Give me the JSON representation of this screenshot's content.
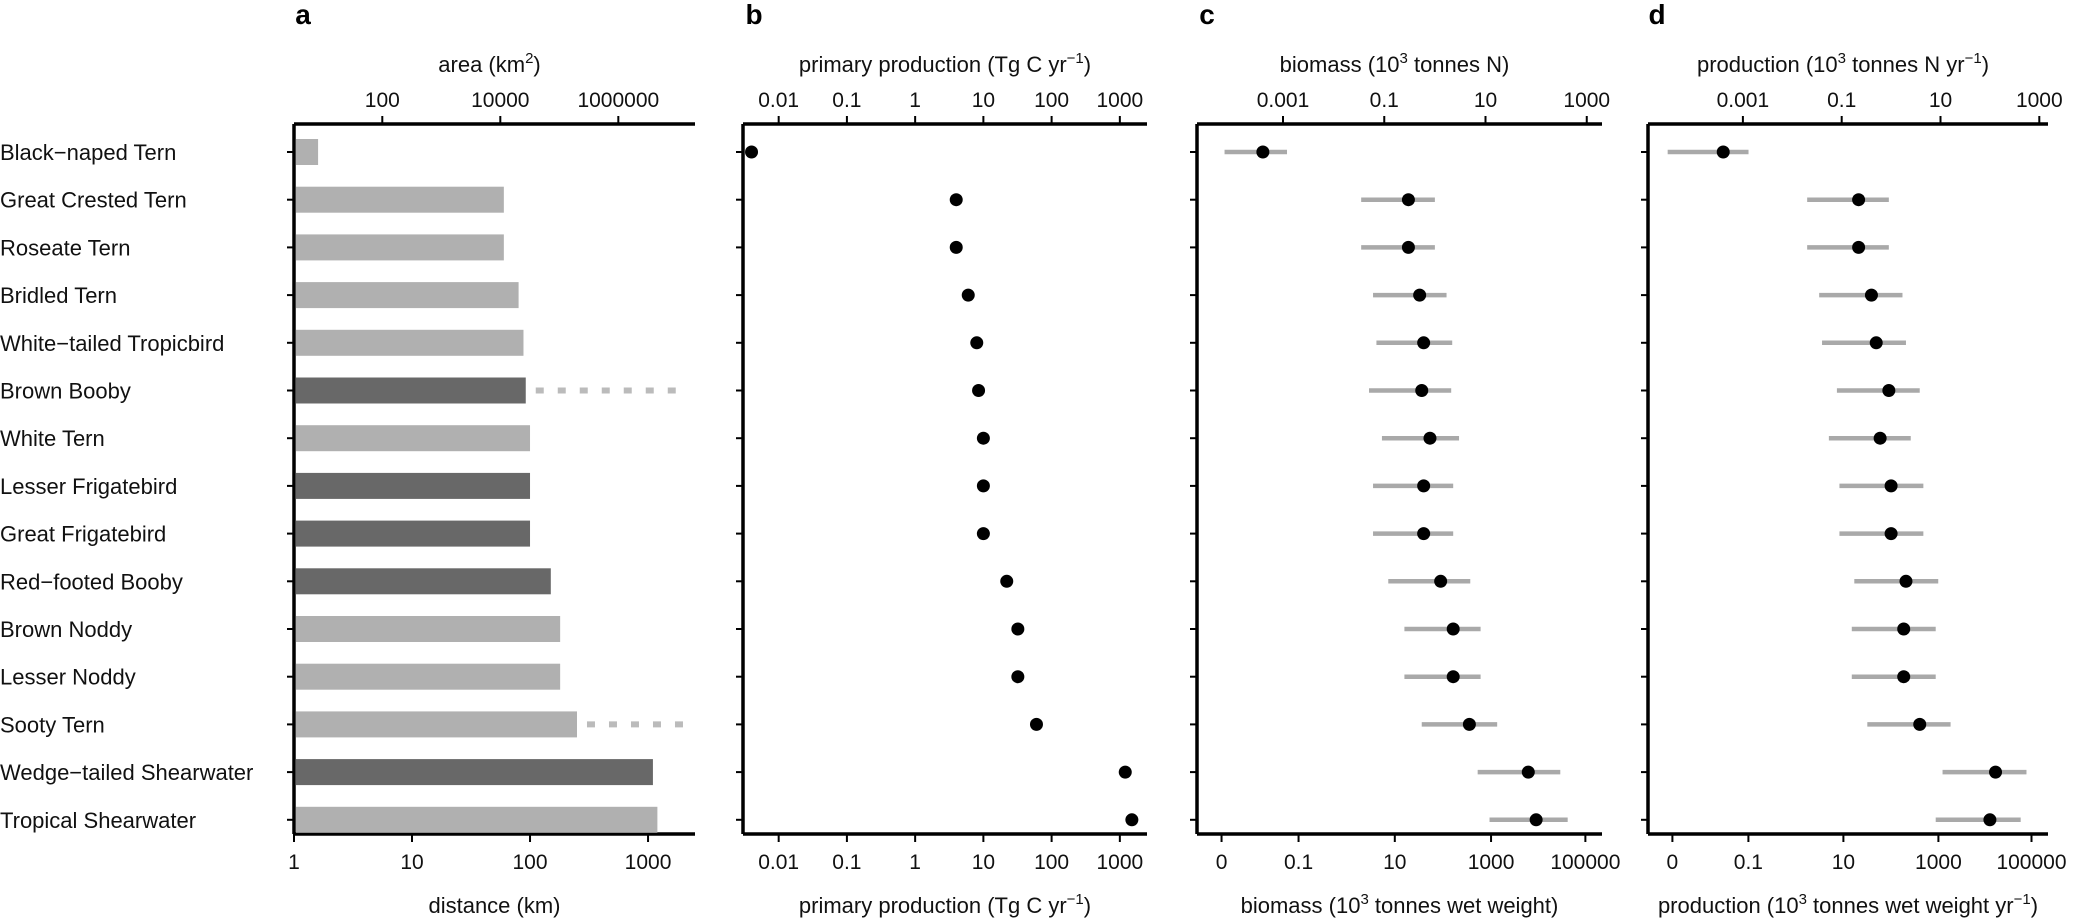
{
  "colors": {
    "bar_light": "#b0b0b0",
    "bar_dark": "#686868",
    "errorbar": "#a9a9a9",
    "point": "#000000"
  },
  "chart_data": [
    {
      "panel": "a",
      "type": "bar",
      "orientation": "horizontal",
      "categories": [
        "Black−naped Tern",
        "Great Crested Tern",
        "Roseate Tern",
        "Bridled Tern",
        "White−tailed Tropicbird",
        "Brown Booby",
        "White Tern",
        "Lesser Frigatebird",
        "Great Frigatebird",
        "Red−footed Booby",
        "Brown Noddy",
        "Lesser Noddy",
        "Sooty Tern",
        "Wedge−tailed Shearwater",
        "Tropical Shearwater"
      ],
      "values": [
        1.6,
        60,
        60,
        80,
        88,
        92,
        100,
        100,
        100,
        150,
        180,
        180,
        250,
        1100,
        1200
      ],
      "highlight": [
        false,
        false,
        false,
        false,
        false,
        true,
        false,
        true,
        true,
        true,
        false,
        false,
        false,
        true,
        false
      ],
      "extended_to": {
        "Brown Booby": 2000,
        "Sooty Tern": 2000
      },
      "xlabel": "distance (km)",
      "xscale": "log",
      "xlim": [
        1,
        2500
      ],
      "xticks": [
        "1",
        "10",
        "100",
        "1000"
      ],
      "top_axis": {
        "label_main": "area (km",
        "label_sup": "2",
        "label_end": ")",
        "ticks": [
          "100",
          "10000",
          "1000000"
        ]
      }
    },
    {
      "panel": "b",
      "type": "scatter",
      "categories_from": "a",
      "values": [
        0.004,
        4,
        4,
        6,
        8,
        8.5,
        10,
        10,
        10,
        22,
        32,
        32,
        60,
        1200,
        1500
      ],
      "xscale": "log",
      "xlim": [
        0.003,
        2500
      ],
      "xticks": [
        "0.01",
        "0.1",
        "1",
        "10",
        "100",
        "1000"
      ],
      "xlabel": "primary production (Tg C yr−1)",
      "top_axis": {
        "label_main": "primary production (Tg C yr",
        "label_sup": "−1",
        "label_end": ")",
        "ticks": [
          "0.01",
          "0.1",
          "1",
          "10",
          "100",
          "1000"
        ]
      }
    },
    {
      "panel": "c",
      "type": "scatter",
      "errorbars": true,
      "values": [
        0.0004,
        0.3,
        0.3,
        0.5,
        0.6,
        0.55,
        0.8,
        0.6,
        0.6,
        1.3,
        2.3,
        2.3,
        4.8,
        70,
        100
      ],
      "lower": [
        7e-05,
        0.035,
        0.035,
        0.06,
        0.07,
        0.05,
        0.09,
        0.06,
        0.06,
        0.12,
        0.25,
        0.25,
        0.55,
        7,
        12
      ],
      "upper": [
        0.0012,
        1.0,
        1.0,
        1.7,
        2.2,
        2.1,
        3.0,
        2.3,
        2.3,
        5.0,
        8.0,
        8.0,
        17,
        300,
        420
      ],
      "xscale": "log",
      "xlim": [
        2e-05,
        2000
      ],
      "xlabel_main": "biomass (10",
      "xlabel_sup": "3",
      "xlabel_end": " tonnes wet weight)",
      "xticks": [
        "0",
        "0.1",
        "10",
        "1000",
        "100000"
      ],
      "top_axis": {
        "label_main": "biomass (10",
        "label_sup": "3",
        "label_end": " tonnes N)",
        "ticks": [
          "0.001",
          "0.1",
          "10",
          "1000"
        ]
      }
    },
    {
      "panel": "d",
      "type": "scatter",
      "errorbars": true,
      "values": [
        0.0004,
        0.22,
        0.22,
        0.4,
        0.5,
        0.9,
        0.6,
        1.0,
        1.0,
        2.0,
        1.8,
        1.8,
        3.8,
        130,
        100
      ],
      "lower": [
        3e-05,
        0.02,
        0.02,
        0.035,
        0.04,
        0.08,
        0.055,
        0.09,
        0.09,
        0.18,
        0.16,
        0.16,
        0.33,
        11,
        8
      ],
      "upper": [
        0.0013,
        0.9,
        0.9,
        1.7,
        2.0,
        3.8,
        2.5,
        4.5,
        4.5,
        9.0,
        8.0,
        8.0,
        16,
        550,
        420
      ],
      "xscale": "log",
      "xlim": [
        1.2e-05,
        1500
      ],
      "xlabel_main": "production (10",
      "xlabel_sup": "3",
      "xlabel_mid": " tonnes wet weight yr",
      "xlabel_sup2": "−1",
      "xlabel_end": ")",
      "xticks": [
        "0",
        "0.1",
        "10",
        "1000",
        "100000"
      ],
      "top_axis": {
        "label_main": "production (10",
        "label_sup": "3",
        "label_mid": " tonnes N yr",
        "label_sup2": "−1",
        "label_end": ")",
        "ticks": [
          "0.001",
          "0.1",
          "10",
          "1000"
        ]
      }
    }
  ]
}
